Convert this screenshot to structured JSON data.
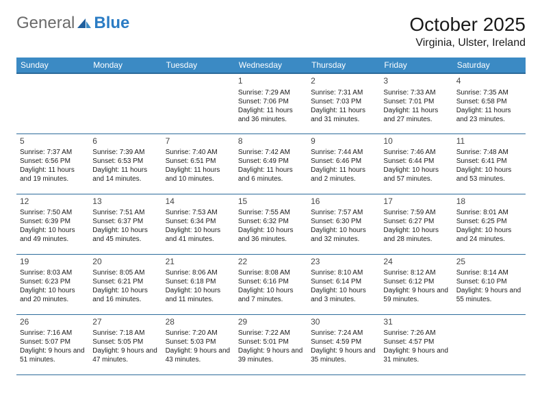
{
  "logo": {
    "text1": "General",
    "text2": "Blue"
  },
  "title": "October 2025",
  "location": "Virginia, Ulster, Ireland",
  "colors": {
    "header_bg": "#3b8ac4",
    "header_text": "#ffffff",
    "border": "#2b6a9a",
    "logo_gray": "#6a6a6a",
    "logo_blue": "#2b7cc4",
    "text": "#1a1a1a",
    "daynum": "#444444",
    "background": "#ffffff"
  },
  "typography": {
    "title_fontsize": 28,
    "location_fontsize": 16,
    "dayheader_fontsize": 12,
    "daynum_fontsize": 12,
    "cell_fontsize": 10
  },
  "day_headers": [
    "Sunday",
    "Monday",
    "Tuesday",
    "Wednesday",
    "Thursday",
    "Friday",
    "Saturday"
  ],
  "weeks": [
    [
      null,
      null,
      null,
      {
        "n": "1",
        "sr": "Sunrise: 7:29 AM",
        "ss": "Sunset: 7:06 PM",
        "dl": "Daylight: 11 hours and 36 minutes."
      },
      {
        "n": "2",
        "sr": "Sunrise: 7:31 AM",
        "ss": "Sunset: 7:03 PM",
        "dl": "Daylight: 11 hours and 31 minutes."
      },
      {
        "n": "3",
        "sr": "Sunrise: 7:33 AM",
        "ss": "Sunset: 7:01 PM",
        "dl": "Daylight: 11 hours and 27 minutes."
      },
      {
        "n": "4",
        "sr": "Sunrise: 7:35 AM",
        "ss": "Sunset: 6:58 PM",
        "dl": "Daylight: 11 hours and 23 minutes."
      }
    ],
    [
      {
        "n": "5",
        "sr": "Sunrise: 7:37 AM",
        "ss": "Sunset: 6:56 PM",
        "dl": "Daylight: 11 hours and 19 minutes."
      },
      {
        "n": "6",
        "sr": "Sunrise: 7:39 AM",
        "ss": "Sunset: 6:53 PM",
        "dl": "Daylight: 11 hours and 14 minutes."
      },
      {
        "n": "7",
        "sr": "Sunrise: 7:40 AM",
        "ss": "Sunset: 6:51 PM",
        "dl": "Daylight: 11 hours and 10 minutes."
      },
      {
        "n": "8",
        "sr": "Sunrise: 7:42 AM",
        "ss": "Sunset: 6:49 PM",
        "dl": "Daylight: 11 hours and 6 minutes."
      },
      {
        "n": "9",
        "sr": "Sunrise: 7:44 AM",
        "ss": "Sunset: 6:46 PM",
        "dl": "Daylight: 11 hours and 2 minutes."
      },
      {
        "n": "10",
        "sr": "Sunrise: 7:46 AM",
        "ss": "Sunset: 6:44 PM",
        "dl": "Daylight: 10 hours and 57 minutes."
      },
      {
        "n": "11",
        "sr": "Sunrise: 7:48 AM",
        "ss": "Sunset: 6:41 PM",
        "dl": "Daylight: 10 hours and 53 minutes."
      }
    ],
    [
      {
        "n": "12",
        "sr": "Sunrise: 7:50 AM",
        "ss": "Sunset: 6:39 PM",
        "dl": "Daylight: 10 hours and 49 minutes."
      },
      {
        "n": "13",
        "sr": "Sunrise: 7:51 AM",
        "ss": "Sunset: 6:37 PM",
        "dl": "Daylight: 10 hours and 45 minutes."
      },
      {
        "n": "14",
        "sr": "Sunrise: 7:53 AM",
        "ss": "Sunset: 6:34 PM",
        "dl": "Daylight: 10 hours and 41 minutes."
      },
      {
        "n": "15",
        "sr": "Sunrise: 7:55 AM",
        "ss": "Sunset: 6:32 PM",
        "dl": "Daylight: 10 hours and 36 minutes."
      },
      {
        "n": "16",
        "sr": "Sunrise: 7:57 AM",
        "ss": "Sunset: 6:30 PM",
        "dl": "Daylight: 10 hours and 32 minutes."
      },
      {
        "n": "17",
        "sr": "Sunrise: 7:59 AM",
        "ss": "Sunset: 6:27 PM",
        "dl": "Daylight: 10 hours and 28 minutes."
      },
      {
        "n": "18",
        "sr": "Sunrise: 8:01 AM",
        "ss": "Sunset: 6:25 PM",
        "dl": "Daylight: 10 hours and 24 minutes."
      }
    ],
    [
      {
        "n": "19",
        "sr": "Sunrise: 8:03 AM",
        "ss": "Sunset: 6:23 PM",
        "dl": "Daylight: 10 hours and 20 minutes."
      },
      {
        "n": "20",
        "sr": "Sunrise: 8:05 AM",
        "ss": "Sunset: 6:21 PM",
        "dl": "Daylight: 10 hours and 16 minutes."
      },
      {
        "n": "21",
        "sr": "Sunrise: 8:06 AM",
        "ss": "Sunset: 6:18 PM",
        "dl": "Daylight: 10 hours and 11 minutes."
      },
      {
        "n": "22",
        "sr": "Sunrise: 8:08 AM",
        "ss": "Sunset: 6:16 PM",
        "dl": "Daylight: 10 hours and 7 minutes."
      },
      {
        "n": "23",
        "sr": "Sunrise: 8:10 AM",
        "ss": "Sunset: 6:14 PM",
        "dl": "Daylight: 10 hours and 3 minutes."
      },
      {
        "n": "24",
        "sr": "Sunrise: 8:12 AM",
        "ss": "Sunset: 6:12 PM",
        "dl": "Daylight: 9 hours and 59 minutes."
      },
      {
        "n": "25",
        "sr": "Sunrise: 8:14 AM",
        "ss": "Sunset: 6:10 PM",
        "dl": "Daylight: 9 hours and 55 minutes."
      }
    ],
    [
      {
        "n": "26",
        "sr": "Sunrise: 7:16 AM",
        "ss": "Sunset: 5:07 PM",
        "dl": "Daylight: 9 hours and 51 minutes."
      },
      {
        "n": "27",
        "sr": "Sunrise: 7:18 AM",
        "ss": "Sunset: 5:05 PM",
        "dl": "Daylight: 9 hours and 47 minutes."
      },
      {
        "n": "28",
        "sr": "Sunrise: 7:20 AM",
        "ss": "Sunset: 5:03 PM",
        "dl": "Daylight: 9 hours and 43 minutes."
      },
      {
        "n": "29",
        "sr": "Sunrise: 7:22 AM",
        "ss": "Sunset: 5:01 PM",
        "dl": "Daylight: 9 hours and 39 minutes."
      },
      {
        "n": "30",
        "sr": "Sunrise: 7:24 AM",
        "ss": "Sunset: 4:59 PM",
        "dl": "Daylight: 9 hours and 35 minutes."
      },
      {
        "n": "31",
        "sr": "Sunrise: 7:26 AM",
        "ss": "Sunset: 4:57 PM",
        "dl": "Daylight: 9 hours and 31 minutes."
      },
      null
    ]
  ]
}
